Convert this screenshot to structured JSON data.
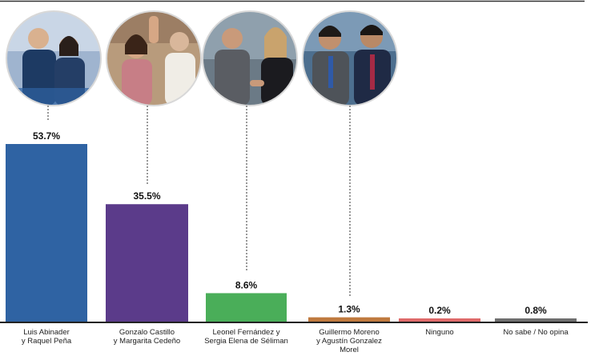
{
  "chart_data": {
    "type": "bar",
    "title": "",
    "xlabel": "",
    "ylabel": "",
    "ylim": [
      0,
      60
    ],
    "grid": false,
    "legend": "none",
    "categories": [
      "Luis Abinader\ny Raquel Peña",
      "Gonzalo Castillo\ny Margarita Cedeño",
      "Leonel Fernández y\nSergia Elena de Séliman",
      "Guillermo Moreno\ny Agustín Gonzalez\nMorel",
      "Ninguno",
      "No sabe / No opina"
    ],
    "values": [
      53.7,
      35.5,
      8.6,
      1.3,
      0.2,
      0.8
    ],
    "value_labels": [
      "53.7%",
      "35.5%",
      "8.6%",
      "1.3%",
      "0.2%",
      "0.8%"
    ],
    "colors": [
      "#2f63a3",
      "#5b3b8a",
      "#4aae59",
      "#c07a3f",
      "#e06a6a",
      "#6f6f6f"
    ],
    "photo_icons": [
      "candidate-photo-abinader-pena",
      "candidate-photo-castillo-cedeno",
      "candidate-photo-fernandez-seliman",
      "candidate-photo-moreno-gonzalez"
    ]
  }
}
